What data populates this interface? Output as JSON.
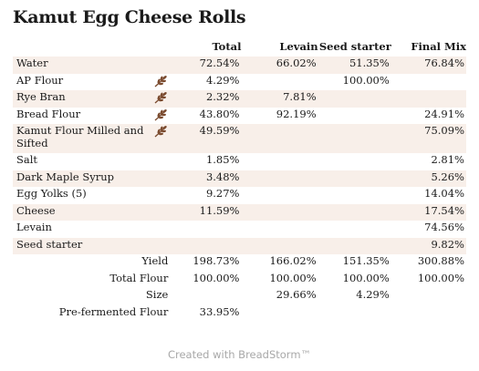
{
  "title": "Kamut Egg Cheese Rolls",
  "headers": {
    "total": "Total",
    "levain": "Levain",
    "seed": "Seed starter",
    "final": "Final Mix"
  },
  "rows": [
    {
      "name": "Water",
      "grain_icon": false,
      "total": "72.54%",
      "levain": "66.02%",
      "seed": "51.35%",
      "final": "76.84%"
    },
    {
      "name": "AP Flour",
      "grain_icon": true,
      "total": "4.29%",
      "levain": "",
      "seed": "100.00%",
      "final": ""
    },
    {
      "name": "Rye Bran",
      "grain_icon": true,
      "total": "2.32%",
      "levain": "7.81%",
      "seed": "",
      "final": ""
    },
    {
      "name": "Bread Flour",
      "grain_icon": true,
      "total": "43.80%",
      "levain": "92.19%",
      "seed": "",
      "final": "24.91%"
    },
    {
      "name": "Kamut Flour Milled and Sifted",
      "grain_icon": true,
      "total": "49.59%",
      "levain": "",
      "seed": "",
      "final": "75.09%"
    },
    {
      "name": "Salt",
      "grain_icon": false,
      "total": "1.85%",
      "levain": "",
      "seed": "",
      "final": "2.81%"
    },
    {
      "name": "Dark Maple Syrup",
      "grain_icon": false,
      "total": "3.48%",
      "levain": "",
      "seed": "",
      "final": "5.26%"
    },
    {
      "name": "Egg Yolks (5)",
      "grain_icon": false,
      "total": "9.27%",
      "levain": "",
      "seed": "",
      "final": "14.04%"
    },
    {
      "name": "Cheese",
      "grain_icon": false,
      "total": "11.59%",
      "levain": "",
      "seed": "",
      "final": "17.54%"
    },
    {
      "name": "Levain",
      "grain_icon": false,
      "total": "",
      "levain": "",
      "seed": "",
      "final": "74.56%"
    },
    {
      "name": "Seed starter",
      "grain_icon": false,
      "total": "",
      "levain": "",
      "seed": "",
      "final": "9.82%"
    }
  ],
  "summary": [
    {
      "label": "Yield",
      "total": "198.73%",
      "levain": "166.02%",
      "seed": "151.35%",
      "final": "300.88%"
    },
    {
      "label": "Total Flour",
      "total": "100.00%",
      "levain": "100.00%",
      "seed": "100.00%",
      "final": "100.00%"
    },
    {
      "label": "Size",
      "total": "",
      "levain": "29.66%",
      "seed": "4.29%",
      "final": ""
    },
    {
      "label": "Pre-fermented Flour",
      "total": "33.95%",
      "levain": "",
      "seed": "",
      "final": ""
    }
  ],
  "footer": "Created with BreadStorm™",
  "colors": {
    "shade": "#f8efe9",
    "grain_icon": "#7a4a2e",
    "footer_text": "#a8a8a8"
  },
  "icons": {
    "grain": "wheat-grain-icon"
  }
}
